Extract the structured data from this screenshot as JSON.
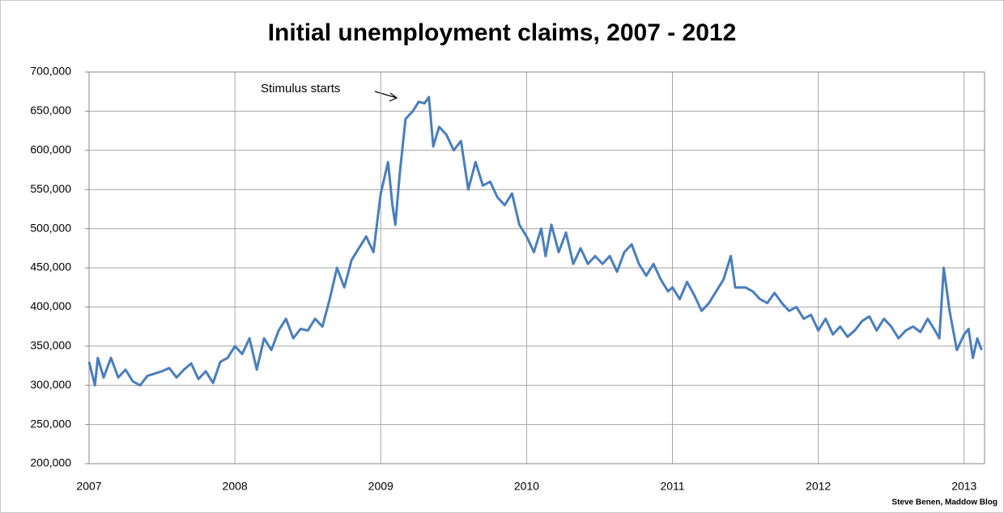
{
  "chart_data": {
    "type": "line",
    "title": "Initial unemployment claims, 2007 - 2012",
    "annotation": "Stimulus starts",
    "credit": "Steve Benen, Maddow Blog",
    "color": "#4a7ebb",
    "grid": true,
    "xlim": [
      2007,
      2013.14
    ],
    "xticks": [
      2007,
      2008,
      2009,
      2010,
      2011,
      2012,
      2013
    ],
    "ylim": [
      200000,
      700000
    ],
    "yticks": [
      {
        "value": 200000,
        "label": "200,000"
      },
      {
        "value": 250000,
        "label": "250,000"
      },
      {
        "value": 300000,
        "label": "300,000"
      },
      {
        "value": 350000,
        "label": "350,000"
      },
      {
        "value": 400000,
        "label": "400,000"
      },
      {
        "value": 450000,
        "label": "450,000"
      },
      {
        "value": 500000,
        "label": "500,000"
      },
      {
        "value": 550000,
        "label": "550,000"
      },
      {
        "value": 600000,
        "label": "600,000"
      },
      {
        "value": 650000,
        "label": "650,000"
      },
      {
        "value": 700000,
        "label": "700,000"
      }
    ],
    "x": [
      2007.0,
      2007.04,
      2007.06,
      2007.1,
      2007.15,
      2007.2,
      2007.25,
      2007.3,
      2007.35,
      2007.4,
      2007.5,
      2007.55,
      2007.6,
      2007.65,
      2007.7,
      2007.75,
      2007.8,
      2007.85,
      2007.9,
      2007.95,
      2008.0,
      2008.05,
      2008.1,
      2008.15,
      2008.2,
      2008.25,
      2008.3,
      2008.35,
      2008.4,
      2008.45,
      2008.5,
      2008.55,
      2008.6,
      2008.65,
      2008.7,
      2008.75,
      2008.8,
      2008.85,
      2008.9,
      2008.95,
      2009.0,
      2009.05,
      2009.08,
      2009.1,
      2009.13,
      2009.17,
      2009.22,
      2009.26,
      2009.3,
      2009.33,
      2009.36,
      2009.4,
      2009.45,
      2009.5,
      2009.55,
      2009.6,
      2009.65,
      2009.7,
      2009.75,
      2009.8,
      2009.85,
      2009.9,
      2009.95,
      2010.0,
      2010.05,
      2010.1,
      2010.13,
      2010.17,
      2010.22,
      2010.27,
      2010.32,
      2010.37,
      2010.42,
      2010.47,
      2010.52,
      2010.57,
      2010.62,
      2010.67,
      2010.72,
      2010.77,
      2010.82,
      2010.87,
      2010.92,
      2010.97,
      2011.0,
      2011.05,
      2011.1,
      2011.15,
      2011.2,
      2011.25,
      2011.3,
      2011.35,
      2011.4,
      2011.43,
      2011.5,
      2011.55,
      2011.6,
      2011.65,
      2011.7,
      2011.75,
      2011.8,
      2011.85,
      2011.9,
      2011.95,
      2012.0,
      2012.05,
      2012.1,
      2012.15,
      2012.2,
      2012.25,
      2012.3,
      2012.35,
      2012.4,
      2012.45,
      2012.5,
      2012.55,
      2012.6,
      2012.65,
      2012.7,
      2012.75,
      2012.8,
      2012.83,
      2012.86,
      2012.9,
      2012.95,
      2013.0,
      2013.03,
      2013.06,
      2013.09,
      2013.12
    ],
    "values": [
      330000,
      300000,
      335000,
      310000,
      335000,
      310000,
      320000,
      305000,
      300000,
      312000,
      318000,
      322000,
      310000,
      320000,
      328000,
      308000,
      318000,
      303000,
      330000,
      335000,
      350000,
      340000,
      360000,
      320000,
      360000,
      345000,
      370000,
      385000,
      360000,
      372000,
      370000,
      385000,
      375000,
      410000,
      450000,
      425000,
      460000,
      475000,
      490000,
      470000,
      545000,
      585000,
      530000,
      505000,
      570000,
      640000,
      650000,
      662000,
      660000,
      668000,
      605000,
      630000,
      620000,
      600000,
      612000,
      550000,
      585000,
      555000,
      560000,
      540000,
      530000,
      545000,
      505000,
      490000,
      470000,
      500000,
      465000,
      505000,
      470000,
      495000,
      455000,
      475000,
      455000,
      465000,
      455000,
      465000,
      445000,
      470000,
      480000,
      455000,
      440000,
      455000,
      435000,
      420000,
      425000,
      410000,
      432000,
      415000,
      395000,
      405000,
      420000,
      435000,
      465000,
      425000,
      425000,
      420000,
      410000,
      405000,
      418000,
      405000,
      395000,
      400000,
      385000,
      390000,
      370000,
      385000,
      365000,
      375000,
      362000,
      370000,
      382000,
      388000,
      370000,
      385000,
      375000,
      360000,
      370000,
      375000,
      368000,
      385000,
      370000,
      360000,
      450000,
      395000,
      345000,
      365000,
      372000,
      335000,
      360000,
      345000
    ]
  }
}
